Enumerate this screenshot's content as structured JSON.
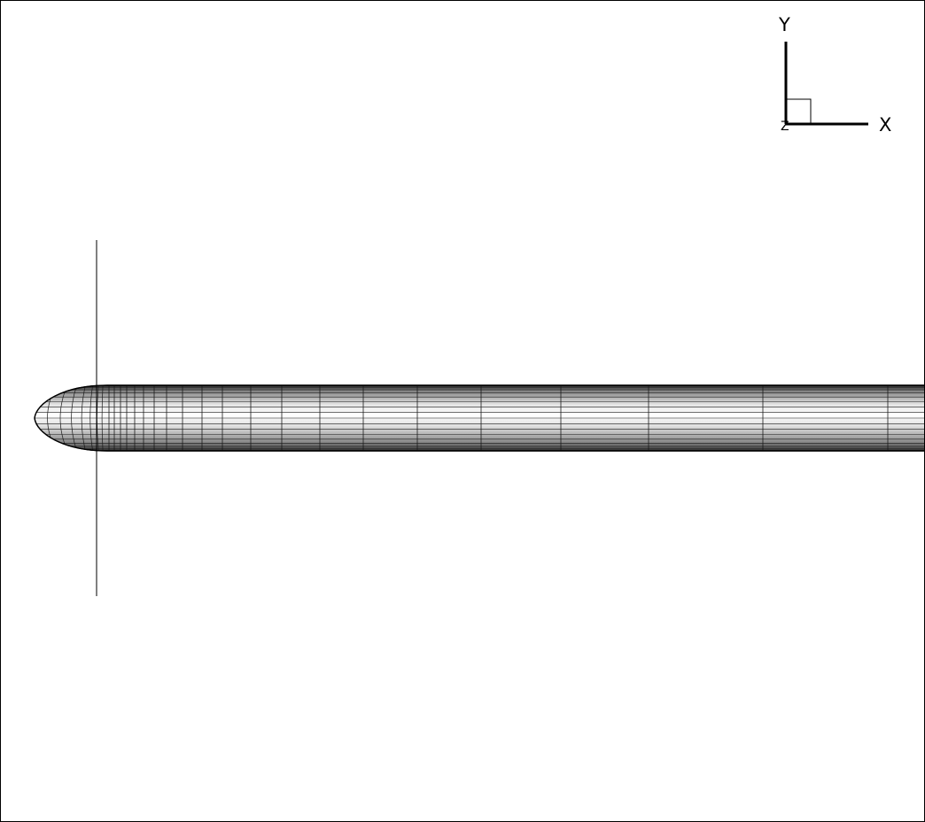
{
  "axes_triad": {
    "x_label": "X",
    "y_label": "Y",
    "z_label": "Z"
  },
  "colors": {
    "background": "#ffffff",
    "frame": "#000000",
    "mesh_line": "#1a1a1a",
    "shade_dark": "#303030",
    "shade_light": "#ffffff"
  }
}
